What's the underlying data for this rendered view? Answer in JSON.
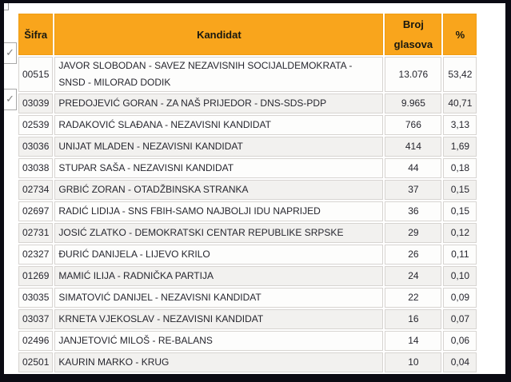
{
  "table": {
    "header": {
      "sifra": "Šifra",
      "kandidat": "Kandidat",
      "broj_glasova": "Broj glasova",
      "percent": "%"
    },
    "rows": [
      {
        "code": "00515",
        "kandidat": "JAVOR SLOBODAN - SAVEZ NEZAVISNIH SOCIJALDEMOKRATA - SNSD - MILORAD DODIK",
        "votes": "13.076",
        "pct": "53,42"
      },
      {
        "code": "03039",
        "kandidat": "PREDOJEVIĆ GORAN - ZA NAŠ PRIJEDOR - DNS-SDS-PDP",
        "votes": "9.965",
        "pct": "40,71"
      },
      {
        "code": "02539",
        "kandidat": "RADAKOVIĆ SLAĐANA - NEZAVISNI KANDIDAT",
        "votes": "766",
        "pct": "3,13"
      },
      {
        "code": "03036",
        "kandidat": "UNIJAT MLADEN - NEZAVISNI KANDIDAT",
        "votes": "414",
        "pct": "1,69"
      },
      {
        "code": "03038",
        "kandidat": "STUPAR SAŠA - NEZAVISNI KANDIDAT",
        "votes": "44",
        "pct": "0,18"
      },
      {
        "code": "02734",
        "kandidat": "GRBIĆ ZORAN - OTADŽBINSKA STRANKA",
        "votes": "37",
        "pct": "0,15"
      },
      {
        "code": "02697",
        "kandidat": "RADIĆ LIDIJA - SNS FBIH-SAMO NAJBOLJI IDU NAPRIJED",
        "votes": "36",
        "pct": "0,15"
      },
      {
        "code": "02731",
        "kandidat": "JOSIĆ ZLATKO - DEMOKRATSKI CENTAR REPUBLIKE SRPSKE",
        "votes": "29",
        "pct": "0,12"
      },
      {
        "code": "02327",
        "kandidat": "ĐURIĆ DANIJELA - LIJEVO KRILO",
        "votes": "26",
        "pct": "0,11"
      },
      {
        "code": "01269",
        "kandidat": "MAMIĆ ILIJA - RADNIČKA PARTIJA",
        "votes": "24",
        "pct": "0,10"
      },
      {
        "code": "03035",
        "kandidat": "SIMATOVIĆ DANIJEL - NEZAVISNI KANDIDAT",
        "votes": "22",
        "pct": "0,09"
      },
      {
        "code": "03037",
        "kandidat": "KRNETA VJEKOSLAV - NEZAVISNI KANDIDAT",
        "votes": "16",
        "pct": "0,07"
      },
      {
        "code": "02496",
        "kandidat": "JANJETOVIĆ MILOŠ - RE-BALANS",
        "votes": "14",
        "pct": "0,06"
      },
      {
        "code": "02501",
        "kandidat": "KAURIN MARKO - KRUG",
        "votes": "10",
        "pct": "0,04"
      }
    ]
  },
  "icons": {
    "checkmark": "✓"
  },
  "colors": {
    "header_bg": "#f9a51c",
    "header_border": "#ef9d14",
    "row_odd_bg": "#f2f1ef",
    "row_even_bg": "#fdfdfc",
    "cell_border": "#d7d4d1",
    "frame": "#0b0b13",
    "header_text": "#181810",
    "cell_text": "#26262e"
  }
}
